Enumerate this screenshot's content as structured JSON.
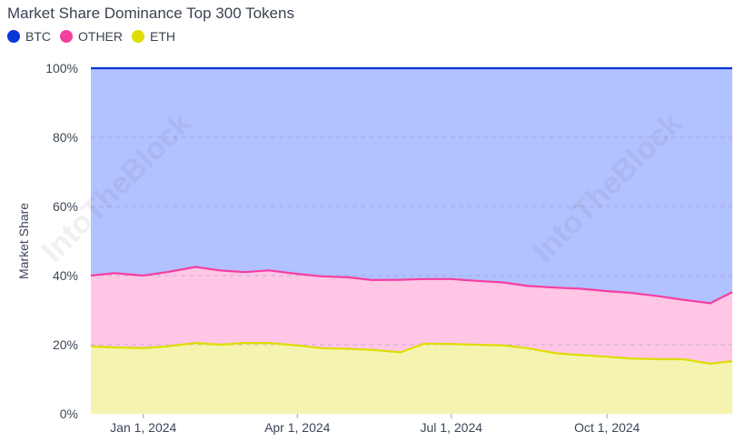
{
  "chart_data": {
    "type": "area",
    "title": "Market Share Dominance Top 300 Tokens",
    "ylabel": "Market Share",
    "xlabel": "",
    "y_tick_labels": [
      "0%",
      "20%",
      "40%",
      "60%",
      "80%",
      "100%"
    ],
    "ylim": [
      0,
      100
    ],
    "x_tick_labels": [
      "Jan 1, 2024",
      "Apr 1, 2024",
      "Jul 1, 2024",
      "Oct 1, 2024"
    ],
    "x_tick_dates": [
      "2024-01-01",
      "2024-04-01",
      "2024-07-01",
      "2024-10-01"
    ],
    "xlim": [
      "2023-12-01",
      "2024-12-14"
    ],
    "stacked": true,
    "grid": "horizontal-dashed",
    "legend_position": "top-left",
    "watermark": "IntoTheBlock",
    "x": [
      "2023-12-01",
      "2023-12-15",
      "2024-01-01",
      "2024-01-15",
      "2024-02-01",
      "2024-02-15",
      "2024-03-01",
      "2024-03-15",
      "2024-04-01",
      "2024-04-15",
      "2024-05-01",
      "2024-05-15",
      "2024-06-01",
      "2024-06-15",
      "2024-07-01",
      "2024-07-15",
      "2024-08-01",
      "2024-08-15",
      "2024-09-01",
      "2024-09-15",
      "2024-10-01",
      "2024-10-15",
      "2024-11-01",
      "2024-11-15",
      "2024-12-01",
      "2024-12-14"
    ],
    "series": [
      {
        "name": "ETH",
        "color": "#dddd00",
        "fill": "#f4f4b0",
        "values": [
          19.5,
          19.2,
          19.0,
          19.5,
          20.5,
          20.0,
          20.5,
          20.5,
          19.8,
          19.0,
          18.8,
          18.5,
          17.8,
          20.3,
          20.2,
          20.0,
          19.8,
          19.0,
          17.5,
          17.0,
          16.5,
          16.0,
          15.8,
          15.8,
          14.5,
          15.2
        ]
      },
      {
        "name": "OTHER",
        "color": "#f53fa1",
        "fill": "#ffc6e6",
        "values": [
          20.5,
          21.5,
          21.0,
          21.5,
          22.0,
          21.5,
          20.5,
          21.0,
          20.7,
          20.8,
          20.7,
          20.2,
          21.0,
          18.7,
          18.8,
          18.5,
          18.2,
          18.0,
          19.0,
          19.2,
          19.0,
          19.0,
          18.2,
          17.2,
          17.5,
          20.0
        ]
      },
      {
        "name": "BTC",
        "color": "#0b36d6",
        "fill": "#b2c1ff",
        "values": [
          60.0,
          59.3,
          60.0,
          59.0,
          57.5,
          58.5,
          59.0,
          58.5,
          59.5,
          60.2,
          60.5,
          61.3,
          61.2,
          61.0,
          61.0,
          61.5,
          62.0,
          63.0,
          63.5,
          63.8,
          64.5,
          65.0,
          66.0,
          67.0,
          68.0,
          64.8
        ]
      }
    ]
  }
}
